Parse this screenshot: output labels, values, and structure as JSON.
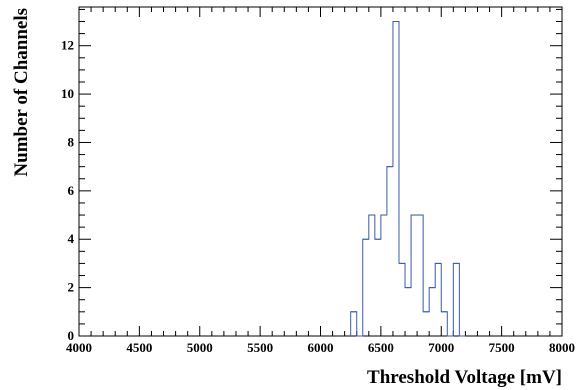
{
  "chart_data": {
    "type": "bar",
    "title": "",
    "xlabel": "Threshold Voltage [mV]",
    "ylabel": "Number of Channels",
    "xlim": [
      4000,
      8000
    ],
    "ylim": [
      0,
      13.6
    ],
    "x_major_ticks": [
      4000,
      4500,
      5000,
      5500,
      6000,
      6500,
      7000,
      7500,
      8000
    ],
    "y_major_ticks": [
      0,
      2,
      4,
      6,
      8,
      10,
      12
    ],
    "x_tick_labels": [
      "4000",
      "4500",
      "5000",
      "5500",
      "6000",
      "6500",
      "7000",
      "7500",
      "8000"
    ],
    "y_tick_labels": [
      "0",
      "2",
      "4",
      "6",
      "8",
      "10",
      "12"
    ],
    "bin_width": 50,
    "bin_edges_start": 6250,
    "values": [
      1,
      0,
      4,
      5,
      4,
      5,
      7,
      13,
      3,
      2,
      5,
      5,
      1,
      2,
      3,
      1,
      0,
      3,
      0
    ],
    "line_color": "#3b5ba5",
    "grid": false,
    "legend": "none"
  }
}
